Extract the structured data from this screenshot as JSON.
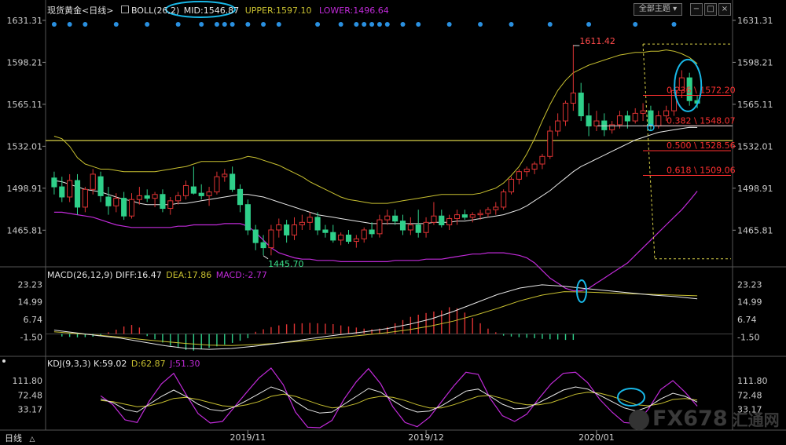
{
  "instrument": {
    "name": "现货黄金",
    "period": "日线"
  },
  "toolbar": {
    "all_indicators_label": "全部主题",
    "period_footer": "日线",
    "period_footer_arrow": "△"
  },
  "colors": {
    "bull": "#dd3333",
    "bear": "#2fd08a",
    "mid": "#e8e8e8",
    "upper": "#c8c030",
    "lower": "#c02ad8",
    "fib": "#ff3030",
    "support": "#d8d048",
    "dot": "#2a90e0",
    "highlight": "#18b8e8",
    "axis_text": "#cccccc"
  },
  "boll": {
    "label": "BOLL(26,2)",
    "mid_label": "MID:1546.87",
    "upper_label": "UPPER:1597.10",
    "lower_label": "LOWER:1496.64"
  },
  "macd": {
    "label": "MACD(26,12,9)",
    "diff_label": "DIFF:16.47",
    "dea_label": "DEA:17.86",
    "macd_label": "MACD:-2.77"
  },
  "kdj": {
    "label": "KDJ(9,3,3)",
    "k_label": "K:59.02",
    "d_label": "D:62.87",
    "j_label": "J:51.30"
  },
  "price_axis": {
    "ticks": [
      "1631.31",
      "1598.21",
      "1565.11",
      "1532.01",
      "1498.91",
      "1465.81"
    ],
    "tick_values": [
      1631.31,
      1598.21,
      1565.11,
      1532.01,
      1498.91,
      1465.81
    ]
  },
  "macd_axis": {
    "ticks": [
      "23.23",
      "14.99",
      "6.74",
      "-1.50"
    ],
    "tick_values": [
      23.23,
      14.99,
      6.74,
      -1.5
    ]
  },
  "kdj_axis": {
    "ticks": [
      "111.80",
      "72.48",
      "33.17"
    ],
    "tick_values": [
      111.8,
      72.48,
      33.17
    ]
  },
  "x_axis": {
    "labels": [
      "2019/11",
      "2019/12",
      "2020/01"
    ]
  },
  "annotations": {
    "high": "1611.42",
    "low": "1445.70"
  },
  "fibonacci": [
    {
      "label": "0.236 \\ 1572.20",
      "value": 1572.2
    },
    {
      "label": "0.382 \\ 1548.07",
      "value": 1548.07
    },
    {
      "label": "0.500 \\ 1528.56",
      "value": 1528.56
    },
    {
      "label": "0.618 \\ 1509.06",
      "value": 1509.06
    }
  ],
  "watermark": {
    "text": "FX678",
    "sub": "汇通网"
  },
  "chart_data": {
    "type": "candlestick",
    "title": "现货黄金 日线",
    "ylim": [
      1435,
      1640
    ],
    "support_line": 1536.5,
    "candles": [
      [
        1507,
        1512,
        1494,
        1500
      ],
      [
        1500,
        1508,
        1488,
        1492
      ],
      [
        1492,
        1510,
        1488,
        1505
      ],
      [
        1505,
        1510,
        1478,
        1484
      ],
      [
        1484,
        1500,
        1480,
        1498
      ],
      [
        1498,
        1514,
        1494,
        1510
      ],
      [
        1508,
        1512,
        1488,
        1493
      ],
      [
        1492,
        1500,
        1478,
        1485
      ],
      [
        1485,
        1495,
        1480,
        1491
      ],
      [
        1491,
        1496,
        1474,
        1477
      ],
      [
        1477,
        1495,
        1475,
        1490
      ],
      [
        1490,
        1500,
        1486,
        1493
      ],
      [
        1493,
        1498,
        1488,
        1491
      ],
      [
        1491,
        1496,
        1484,
        1494
      ],
      [
        1494,
        1498,
        1480,
        1483
      ],
      [
        1483,
        1492,
        1478,
        1489
      ],
      [
        1489,
        1496,
        1486,
        1493
      ],
      [
        1493,
        1505,
        1490,
        1501
      ],
      [
        1500,
        1516,
        1494,
        1495
      ],
      [
        1495,
        1502,
        1490,
        1493
      ],
      [
        1493,
        1500,
        1485,
        1496
      ],
      [
        1496,
        1512,
        1494,
        1508
      ],
      [
        1508,
        1514,
        1504,
        1510
      ],
      [
        1510,
        1516,
        1496,
        1498
      ],
      [
        1498,
        1502,
        1480,
        1486
      ],
      [
        1486,
        1490,
        1462,
        1466
      ],
      [
        1466,
        1470,
        1450,
        1456
      ],
      [
        1456,
        1462,
        1446,
        1452
      ],
      [
        1452,
        1470,
        1446,
        1466
      ],
      [
        1466,
        1475,
        1460,
        1470
      ],
      [
        1470,
        1474,
        1456,
        1462
      ],
      [
        1462,
        1476,
        1458,
        1470
      ],
      [
        1470,
        1478,
        1466,
        1472
      ],
      [
        1472,
        1480,
        1466,
        1476
      ],
      [
        1476,
        1480,
        1462,
        1466
      ],
      [
        1466,
        1470,
        1460,
        1464
      ],
      [
        1464,
        1470,
        1456,
        1458
      ],
      [
        1458,
        1464,
        1454,
        1462
      ],
      [
        1462,
        1466,
        1455,
        1457
      ],
      [
        1457,
        1462,
        1452,
        1459
      ],
      [
        1459,
        1468,
        1456,
        1466
      ],
      [
        1466,
        1472,
        1460,
        1463
      ],
      [
        1463,
        1478,
        1460,
        1474
      ],
      [
        1474,
        1482,
        1470,
        1477
      ],
      [
        1477,
        1482,
        1470,
        1473
      ],
      [
        1473,
        1478,
        1462,
        1466
      ],
      [
        1466,
        1476,
        1462,
        1470
      ],
      [
        1470,
        1482,
        1460,
        1464
      ],
      [
        1464,
        1476,
        1460,
        1472
      ],
      [
        1472,
        1488,
        1470,
        1477
      ],
      [
        1477,
        1482,
        1468,
        1470
      ],
      [
        1470,
        1478,
        1466,
        1475
      ],
      [
        1475,
        1482,
        1470,
        1478
      ],
      [
        1478,
        1482,
        1474,
        1476
      ],
      [
        1476,
        1480,
        1472,
        1478
      ],
      [
        1478,
        1482,
        1474,
        1479
      ],
      [
        1479,
        1484,
        1476,
        1482
      ],
      [
        1482,
        1488,
        1478,
        1484
      ],
      [
        1484,
        1498,
        1482,
        1496
      ],
      [
        1496,
        1508,
        1494,
        1506
      ],
      [
        1506,
        1514,
        1502,
        1512
      ],
      [
        1512,
        1516,
        1508,
        1514
      ],
      [
        1514,
        1520,
        1510,
        1518
      ],
      [
        1518,
        1526,
        1514,
        1524
      ],
      [
        1524,
        1548,
        1522,
        1544
      ],
      [
        1544,
        1558,
        1540,
        1552
      ],
      [
        1552,
        1568,
        1548,
        1566
      ],
      [
        1566,
        1612,
        1560,
        1574
      ],
      [
        1574,
        1582,
        1552,
        1556
      ],
      [
        1556,
        1566,
        1540,
        1548
      ],
      [
        1548,
        1560,
        1544,
        1552
      ],
      [
        1552,
        1558,
        1540,
        1545
      ],
      [
        1545,
        1552,
        1542,
        1549
      ],
      [
        1549,
        1560,
        1546,
        1556
      ],
      [
        1556,
        1560,
        1546,
        1552
      ],
      [
        1552,
        1562,
        1550,
        1558
      ],
      [
        1558,
        1566,
        1552,
        1560
      ],
      [
        1560,
        1564,
        1544,
        1548
      ],
      [
        1548,
        1560,
        1546,
        1556
      ],
      [
        1556,
        1564,
        1552,
        1560
      ],
      [
        1560,
        1578,
        1556,
        1576
      ],
      [
        1576,
        1592,
        1570,
        1586
      ],
      [
        1586,
        1590,
        1564,
        1568
      ],
      [
        1568,
        1572,
        1562,
        1566
      ]
    ],
    "macd_hist": [
      -1.2,
      -1.4,
      -1.6,
      -1.5,
      -1.3,
      -1.1,
      0.8,
      2.0,
      3.5,
      4.2,
      3.0,
      -1.0,
      -2.5,
      -4.0,
      -5.5,
      -6.5,
      -7.5,
      -7.8,
      -7.2,
      -6.5,
      -5.8,
      -5.0,
      -4.2,
      -3.2,
      -2.0,
      1.0,
      2.2,
      3.2,
      4.0,
      4.5,
      4.8,
      5.0,
      5.2,
      5.0,
      4.8,
      4.6,
      4.0,
      3.5,
      3.0,
      2.5,
      2.2,
      2.5,
      3.2,
      5.0,
      6.5,
      8.0,
      9.0,
      9.8,
      10.5,
      11.0,
      12.5,
      12.0,
      10.0,
      7.5,
      5.0,
      2.5,
      0.8,
      -0.8,
      -1.2,
      -1.5,
      -1.8,
      -2.0,
      -2.3,
      -2.5,
      -2.6,
      -2.8,
      -2.77
    ],
    "macd_hist_start": 1,
    "diff": [
      1.8,
      0.5,
      -0.8,
      -2.0,
      -3.8,
      -5.5,
      -6.8,
      -7.2,
      -6.8,
      -5.8,
      -4.5,
      -3.0,
      -1.5,
      -0.2,
      1.0,
      2.5,
      4.5,
      7.0,
      10.5,
      14.5,
      18.5,
      21.5,
      23.0,
      22.3,
      21.2,
      20.2,
      19.2,
      18.2,
      17.5,
      16.47
    ],
    "dea": [
      1.0,
      0.2,
      -0.6,
      -1.5,
      -2.6,
      -3.6,
      -4.5,
      -5.2,
      -5.4,
      -5.0,
      -4.4,
      -3.5,
      -2.5,
      -1.5,
      -0.5,
      0.6,
      2.0,
      3.8,
      6.0,
      8.8,
      12.0,
      15.5,
      18.2,
      19.8,
      19.6,
      19.2,
      18.8,
      18.5,
      18.2,
      17.86
    ],
    "kdj_k": [
      65,
      58,
      45,
      40,
      55,
      70,
      82,
      70,
      55,
      45,
      42,
      50,
      62,
      75,
      88,
      80,
      60,
      45,
      38,
      40,
      55,
      70,
      85,
      78,
      62,
      48,
      40,
      42,
      52,
      66,
      80,
      84,
      70,
      55,
      46,
      48,
      58,
      70,
      82,
      88,
      84,
      72,
      60,
      48,
      42,
      50,
      65,
      76,
      70,
      59.02
    ],
    "kdj_d": [
      62,
      60,
      55,
      50,
      52,
      58,
      66,
      68,
      64,
      58,
      52,
      50,
      54,
      60,
      70,
      74,
      70,
      62,
      54,
      48,
      50,
      56,
      66,
      70,
      68,
      62,
      54,
      48,
      48,
      54,
      62,
      70,
      72,
      66,
      58,
      54,
      54,
      58,
      66,
      74,
      78,
      76,
      70,
      62,
      54,
      52,
      56,
      64,
      66,
      62.87
    ],
    "kdj_j": [
      71,
      54,
      25,
      20,
      61,
      94,
      114,
      74,
      37,
      19,
      22,
      50,
      78,
      105,
      124,
      92,
      40,
      11,
      6,
      24,
      65,
      98,
      123,
      94,
      50,
      20,
      12,
      30,
      60,
      90,
      116,
      112,
      66,
      33,
      22,
      36,
      66,
      94,
      114,
      116,
      96,
      64,
      40,
      20,
      18,
      46,
      83,
      100,
      78,
      51.3
    ],
    "kdj_start": 6,
    "boll_mid": [
      1505,
      1504,
      1502,
      1500,
      1498,
      1497,
      1496,
      1494,
      1492,
      1490,
      1489,
      1487,
      1486,
      1486,
      1486,
      1486,
      1487,
      1487,
      1488,
      1489,
      1490,
      1491,
      1492,
      1493,
      1494,
      1494,
      1493,
      1492,
      1490,
      1488,
      1486,
      1484,
      1482,
      1480,
      1478,
      1477,
      1476,
      1475,
      1474,
      1473,
      1472,
      1471,
      1471,
      1471,
      1471,
      1471,
      1471,
      1471,
      1471,
      1472,
      1472,
      1472,
      1473,
      1473,
      1474,
      1475,
      1476,
      1477,
      1478,
      1480,
      1482,
      1485,
      1489,
      1493,
      1497,
      1502,
      1507,
      1512,
      1516,
      1519,
      1522,
      1525,
      1528,
      1531,
      1534,
      1537,
      1539,
      1541,
      1543,
      1544,
      1545,
      1546,
      1547,
      1546.87
    ],
    "boll_upper": [
      1540,
      1538,
      1532,
      1523,
      1518,
      1516,
      1514,
      1514,
      1513,
      1512,
      1512,
      1512,
      1512,
      1512,
      1513,
      1514,
      1515,
      1516,
      1518,
      1520,
      1520,
      1520,
      1520,
      1521,
      1522,
      1524,
      1523,
      1521,
      1519,
      1517,
      1514,
      1511,
      1508,
      1504,
      1501,
      1498,
      1495,
      1492,
      1490,
      1489,
      1488,
      1487,
      1487,
      1487,
      1488,
      1489,
      1490,
      1491,
      1492,
      1493,
      1494,
      1494,
      1494,
      1494,
      1494,
      1495,
      1497,
      1499,
      1503,
      1509,
      1516,
      1526,
      1538,
      1552,
      1565,
      1576,
      1584,
      1590,
      1593,
      1596,
      1598,
      1600,
      1602,
      1604,
      1605,
      1606,
      1606,
      1607,
      1607,
      1608,
      1607,
      1605,
      1602,
      1597.1
    ],
    "boll_lower": [
      1480,
      1480,
      1479,
      1478,
      1477,
      1476,
      1474,
      1472,
      1470,
      1469,
      1468,
      1468,
      1468,
      1468,
      1468,
      1468,
      1469,
      1469,
      1470,
      1470,
      1470,
      1470,
      1471,
      1471,
      1471,
      1469,
      1464,
      1458,
      1452,
      1448,
      1446,
      1444,
      1443,
      1443,
      1442,
      1442,
      1442,
      1441,
      1441,
      1441,
      1441,
      1441,
      1441,
      1441,
      1442,
      1442,
      1442,
      1442,
      1443,
      1443,
      1443,
      1444,
      1445,
      1446,
      1447,
      1447,
      1448,
      1448,
      1448,
      1447,
      1446,
      1444,
      1440,
      1434,
      1428,
      1424,
      1420,
      1418,
      1418,
      1420,
      1424,
      1428,
      1432,
      1436,
      1440,
      1446,
      1452,
      1458,
      1464,
      1470,
      1476,
      1482,
      1489,
      1496.64
    ]
  }
}
